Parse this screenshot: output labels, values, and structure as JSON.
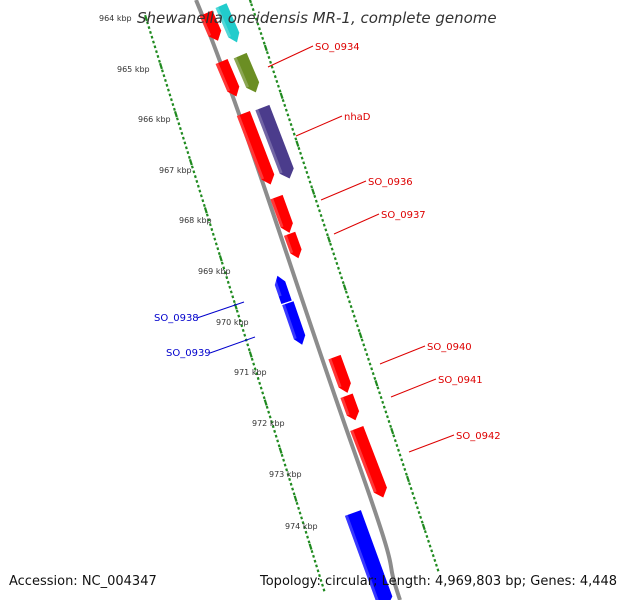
{
  "title": "Shewanella oneidensis MR-1, complete genome",
  "footer": {
    "accession": "Accession: NC_004347",
    "summary": "Topology: circular; Length: 4,969,803 bp; Genes: 4,448"
  },
  "colors": {
    "backbone": "#8c8c8c",
    "scale_dots": "#1f8a1f",
    "forward_label": "#dd0000",
    "reverse_label": "#0000cc",
    "gene_red": "#ff0000",
    "gene_blue": "#0000ff",
    "gene_teal": "#22cccc",
    "gene_olive": "#6b8e23",
    "gene_purple": "#4b3c8c"
  },
  "kbp_labels": [
    "964 kbp",
    "965 kbp",
    "966 kbp",
    "967 kbp",
    "968 kbp",
    "969 kbp",
    "970 kbp",
    "971 kbp",
    "972 kbp",
    "973 kbp",
    "974 kbp"
  ],
  "gene_labels": [
    {
      "name": "SO_0934",
      "strand": "forward"
    },
    {
      "name": "nhaD",
      "strand": "forward"
    },
    {
      "name": "SO_0936",
      "strand": "forward"
    },
    {
      "name": "SO_0937",
      "strand": "forward"
    },
    {
      "name": "SO_0938",
      "strand": "reverse"
    },
    {
      "name": "SO_0939",
      "strand": "reverse"
    },
    {
      "name": "SO_0940",
      "strand": "forward"
    },
    {
      "name": "SO_0941",
      "strand": "forward"
    },
    {
      "name": "SO_0942",
      "strand": "forward"
    }
  ],
  "gene_glyphs": [
    {
      "name": "gene-red",
      "color": "gene_red",
      "direction": "forward"
    },
    {
      "name": "gene-teal",
      "color": "gene_teal",
      "direction": "forward"
    },
    {
      "name": "gene-red",
      "color": "gene_red",
      "direction": "forward"
    },
    {
      "name": "gene-olive",
      "color": "gene_olive",
      "direction": "forward"
    },
    {
      "name": "gene-red",
      "color": "gene_red",
      "direction": "forward"
    },
    {
      "name": "gene-purple",
      "color": "gene_purple",
      "direction": "forward"
    },
    {
      "name": "gene-red",
      "color": "gene_red",
      "direction": "forward"
    },
    {
      "name": "gene-red",
      "color": "gene_red",
      "direction": "forward"
    },
    {
      "name": "gene-blue",
      "color": "gene_blue",
      "direction": "reverse"
    },
    {
      "name": "gene-blue",
      "color": "gene_blue",
      "direction": "forward"
    },
    {
      "name": "gene-red",
      "color": "gene_red",
      "direction": "forward"
    },
    {
      "name": "gene-red",
      "color": "gene_red",
      "direction": "forward"
    },
    {
      "name": "gene-red",
      "color": "gene_red",
      "direction": "forward"
    },
    {
      "name": "gene-blue",
      "color": "gene_blue",
      "direction": "forward"
    }
  ]
}
